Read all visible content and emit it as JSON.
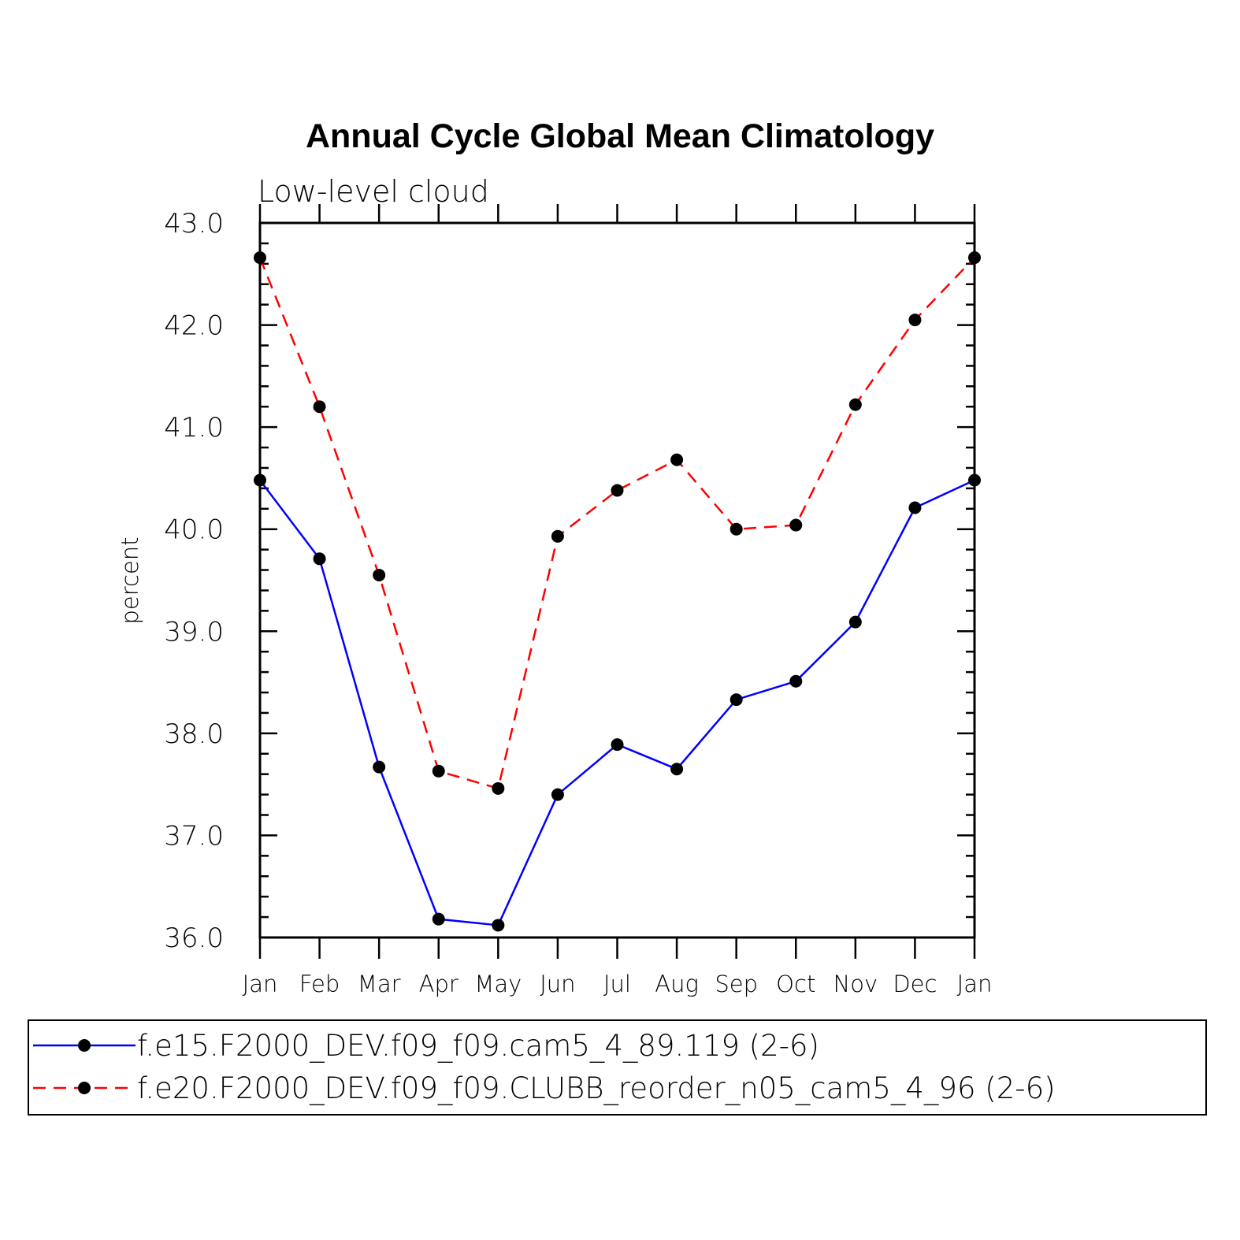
{
  "chart_data": {
    "type": "line",
    "title": "Annual Cycle Global Mean Climatology",
    "subtitle": "Low-level cloud",
    "ylabel": "percent",
    "xlabel": "",
    "ylim": [
      36.0,
      43.0
    ],
    "yticks": [
      "36.0",
      "37.0",
      "38.0",
      "39.0",
      "40.0",
      "41.0",
      "42.0",
      "43.0"
    ],
    "categories": [
      "Jan",
      "Feb",
      "Mar",
      "Apr",
      "May",
      "Jun",
      "Jul",
      "Aug",
      "Sep",
      "Oct",
      "Nov",
      "Dec",
      "Jan"
    ],
    "legend_position": "bottom",
    "series": [
      {
        "name": "f.e15.F2000_DEV.f09_f09.cam5_4_89.119 (2-6)",
        "color": "#0000ff",
        "dash": "solid",
        "values": [
          40.48,
          39.71,
          37.67,
          36.18,
          36.12,
          37.4,
          37.89,
          37.65,
          38.33,
          38.51,
          39.09,
          40.21,
          40.48
        ]
      },
      {
        "name": "f.e20.F2000_DEV.f09_f09.CLUBB_reorder_n05_cam5_4_96 (2-6)",
        "color": "#ff0000",
        "dash": "dashed",
        "values": [
          42.66,
          41.2,
          39.55,
          37.63,
          37.46,
          39.93,
          40.38,
          40.68,
          40.0,
          40.04,
          41.22,
          42.05,
          42.66
        ]
      }
    ]
  }
}
